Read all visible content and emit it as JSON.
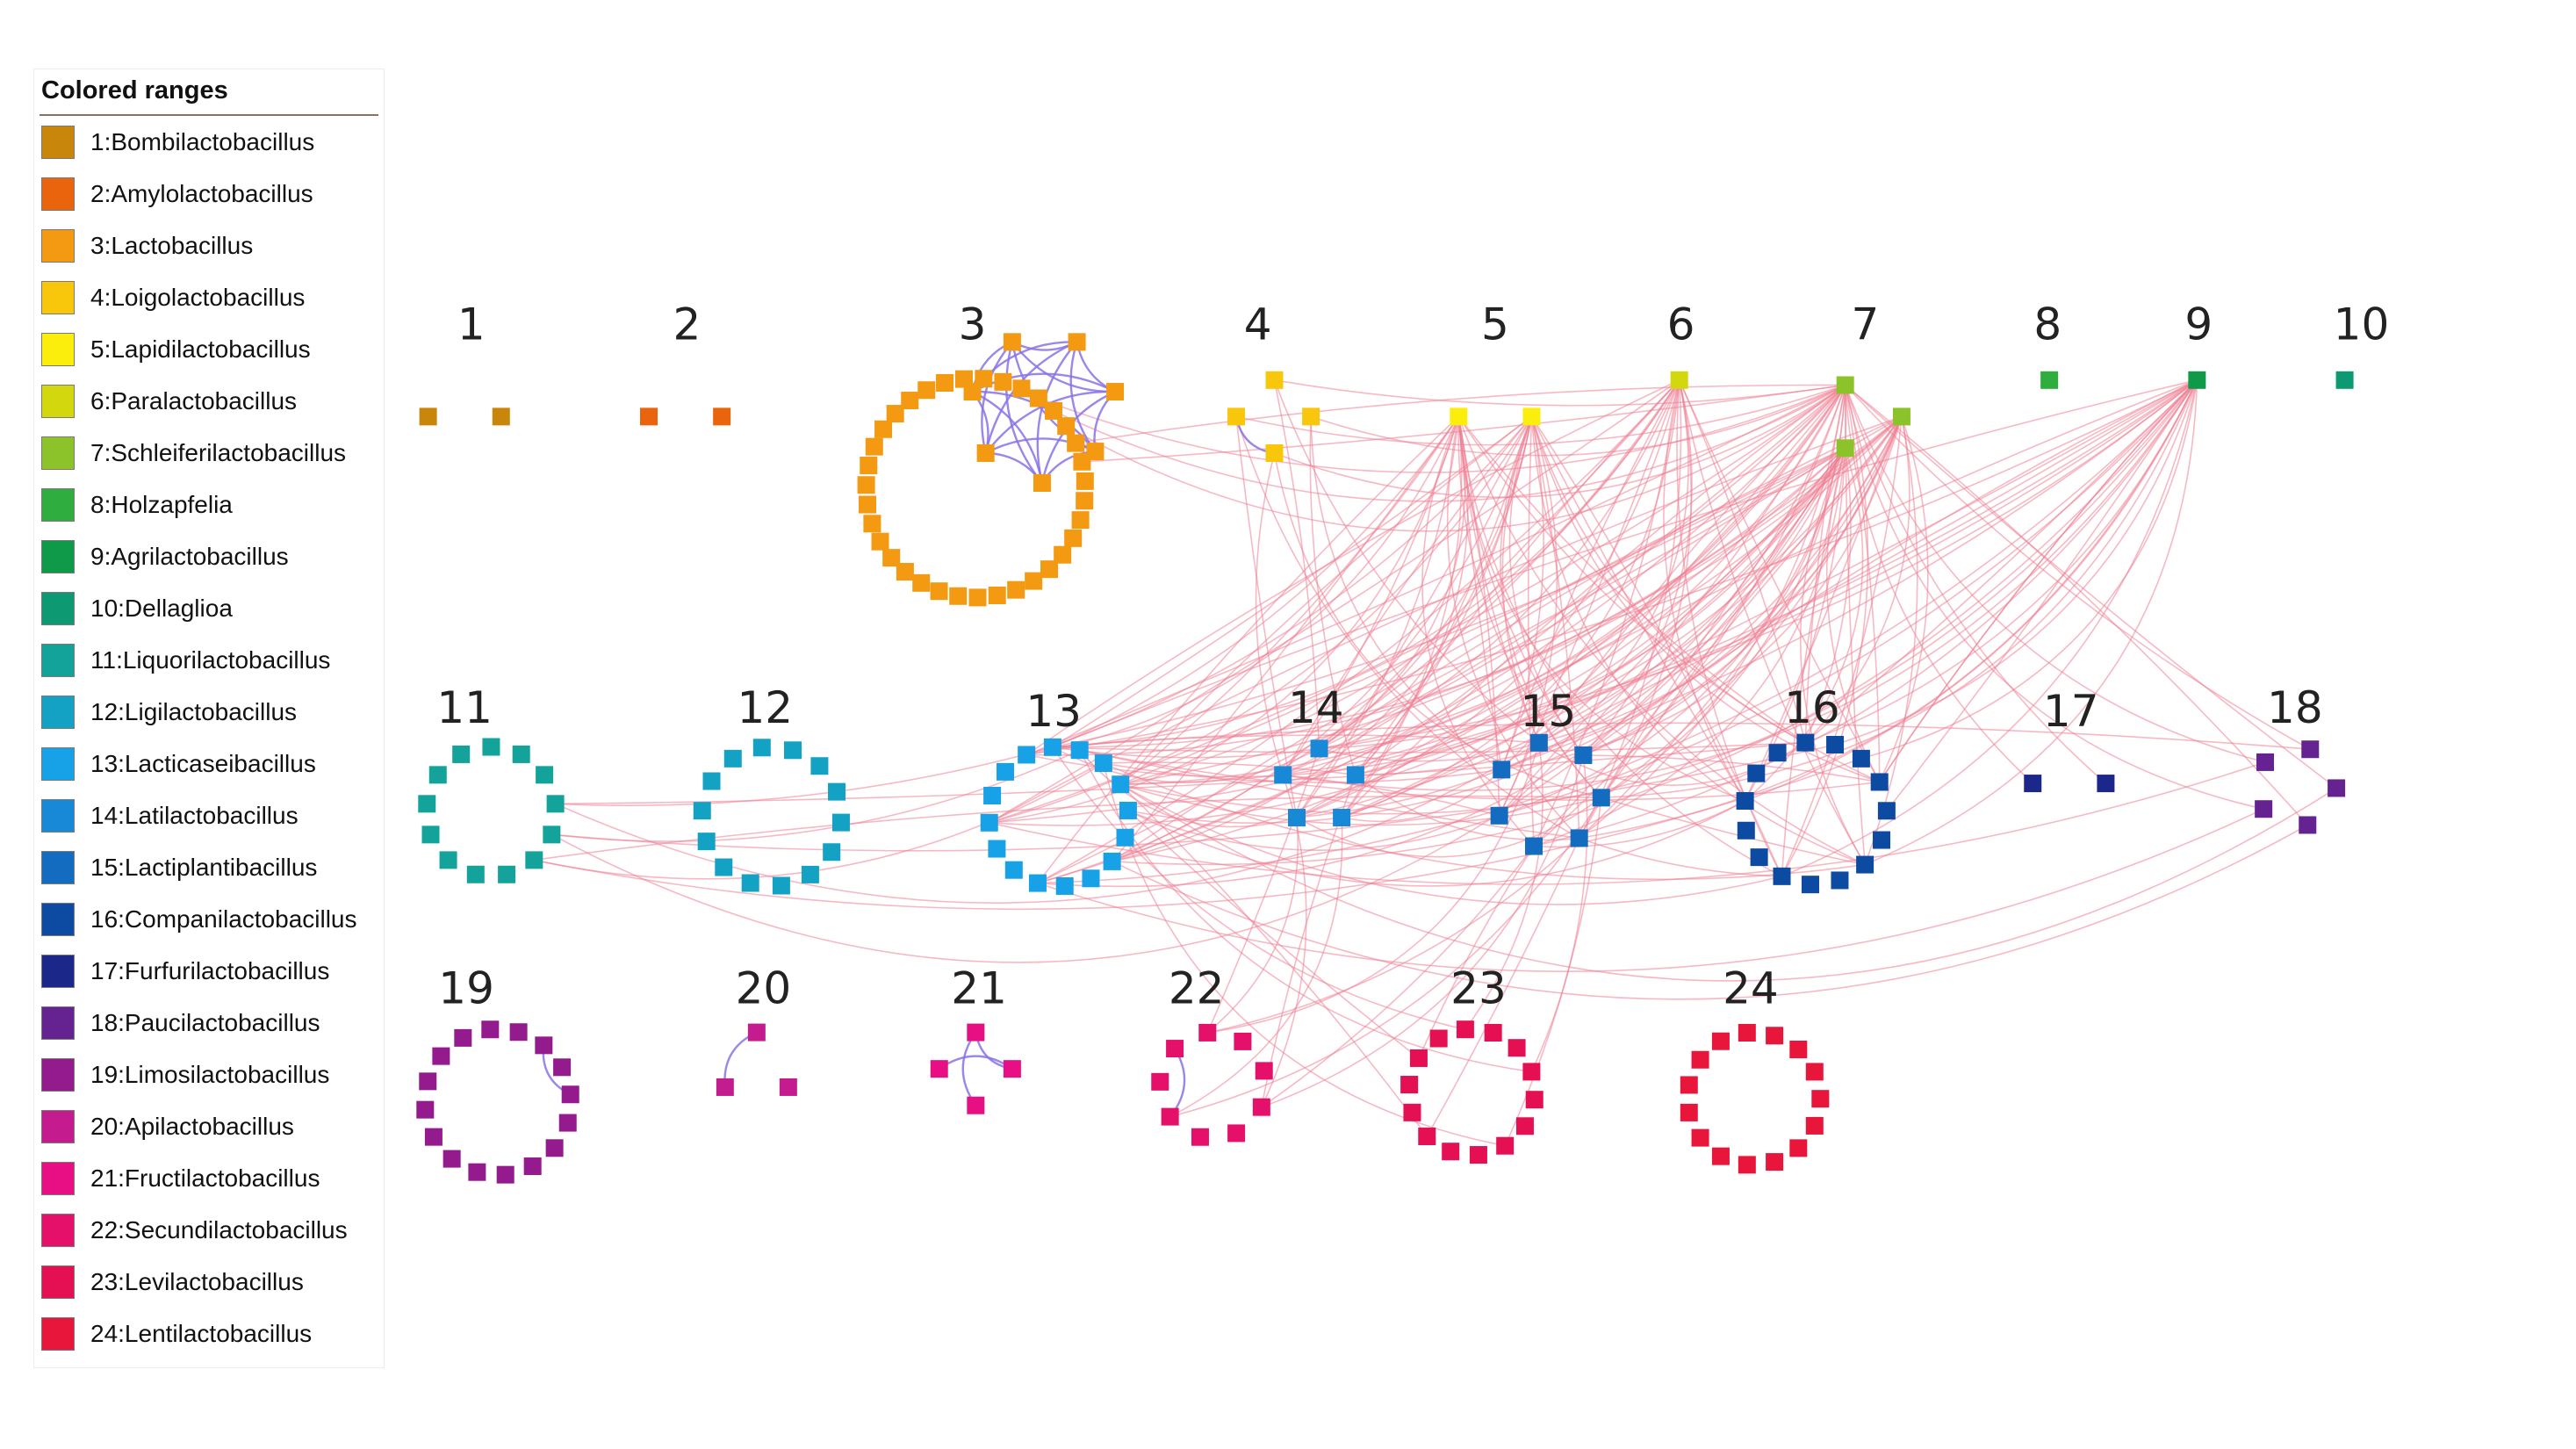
{
  "legend": {
    "title": "Colored ranges",
    "items": [
      {
        "label": "1:Bombilactobacillus",
        "color": "#c8860a"
      },
      {
        "label": "2:Amylolactobacillus",
        "color": "#e9640c"
      },
      {
        "label": "3:Lactobacillus",
        "color": "#f39a12"
      },
      {
        "label": "4:Loigolactobacillus",
        "color": "#f8c60a"
      },
      {
        "label": "5:Lapidilactobacillus",
        "color": "#fcee0c"
      },
      {
        "label": "6:Paralactobacillus",
        "color": "#d3d80e"
      },
      {
        "label": "7:Schleiferilactobacillus",
        "color": "#8cc22a"
      },
      {
        "label": "8:Holzapfelia",
        "color": "#2fad3e"
      },
      {
        "label": "9:Agrilactobacillus",
        "color": "#0f9a4a"
      },
      {
        "label": "10:Dellaglioa",
        "color": "#0d9a72"
      },
      {
        "label": "11:Liquorilactobacillus",
        "color": "#13a39a"
      },
      {
        "label": "12:Ligilactobacillus",
        "color": "#13a2c4"
      },
      {
        "label": "13:Lacticaseibacillus",
        "color": "#17a1e6"
      },
      {
        "label": "14:Latilactobacillus",
        "color": "#1789d7"
      },
      {
        "label": "15:Lactiplantibacillus",
        "color": "#136cbf"
      },
      {
        "label": "16:Companilactobacillus",
        "color": "#0d4ba3"
      },
      {
        "label": "17:Furfurilactobacillus",
        "color": "#1c2889"
      },
      {
        "label": "18:Paucilactobacillus",
        "color": "#652392"
      },
      {
        "label": "19:Limosilactobacillus",
        "color": "#941b8e"
      },
      {
        "label": "20:Apilactobacillus",
        "color": "#c41c8e"
      },
      {
        "label": "21:Fructilactobacillus",
        "color": "#e80f84"
      },
      {
        "label": "22:Secundilactobacillus",
        "color": "#e5106a"
      },
      {
        "label": "23:Levilactobacillus",
        "color": "#e50f53"
      },
      {
        "label": "24:Lentilactobacillus",
        "color": "#e8163a"
      }
    ]
  },
  "groups": [
    {
      "label": "1",
      "nodes": 2,
      "ring": false
    },
    {
      "label": "2",
      "nodes": 2,
      "ring": false
    },
    {
      "label": "3",
      "nodes": 35,
      "ring": true
    },
    {
      "label": "4",
      "nodes": 4,
      "ring": false
    },
    {
      "label": "5",
      "nodes": 2,
      "ring": false
    },
    {
      "label": "6",
      "nodes": 1,
      "ring": false
    },
    {
      "label": "7",
      "nodes": 3,
      "ring": false
    },
    {
      "label": "8",
      "nodes": 1,
      "ring": false
    },
    {
      "label": "9",
      "nodes": 1,
      "ring": false
    },
    {
      "label": "10",
      "nodes": 1,
      "ring": false
    },
    {
      "label": "11",
      "nodes": 13,
      "ring": true
    },
    {
      "label": "12",
      "nodes": 14,
      "ring": true
    },
    {
      "label": "13",
      "nodes": 16,
      "ring": true
    },
    {
      "label": "14",
      "nodes": 5,
      "ring": true
    },
    {
      "label": "15",
      "nodes": 7,
      "ring": true
    },
    {
      "label": "16",
      "nodes": 15,
      "ring": true
    },
    {
      "label": "17",
      "nodes": 2,
      "ring": false
    },
    {
      "label": "18",
      "nodes": 5,
      "ring": true
    },
    {
      "label": "19",
      "nodes": 16,
      "ring": true
    },
    {
      "label": "20",
      "nodes": 3,
      "ring": true
    },
    {
      "label": "21",
      "nodes": 4,
      "ring": true
    },
    {
      "label": "22",
      "nodes": 9,
      "ring": true
    },
    {
      "label": "23",
      "nodes": 14,
      "ring": true
    },
    {
      "label": "24",
      "nodes": 15,
      "ring": true
    }
  ],
  "edge_colors": {
    "inter": "#ef7f94",
    "intra": "#8a72e6"
  }
}
